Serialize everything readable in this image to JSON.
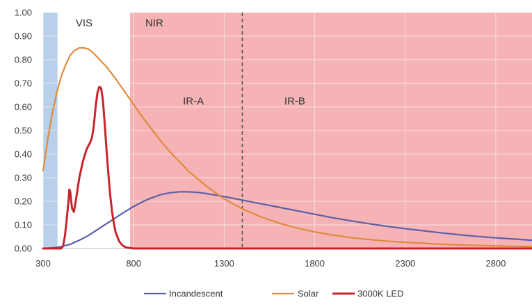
{
  "chart_data": {
    "type": "line",
    "xlim": [
      300,
      3000
    ],
    "ylim": [
      0,
      1.0
    ],
    "x_ticks": [
      "300",
      "800",
      "1300",
      "1800",
      "2300",
      "2800"
    ],
    "y_ticks": [
      "0.00",
      "0.10",
      "0.20",
      "0.30",
      "0.40",
      "0.50",
      "0.60",
      "0.70",
      "0.80",
      "0.90",
      "1.00"
    ],
    "grid": true,
    "legend_position": "bottom",
    "regions": [
      {
        "name": "uv",
        "label": "",
        "x_start": 300,
        "x_end": 380,
        "color": "#b8d0ea"
      },
      {
        "name": "vis",
        "label": "VIS",
        "x_start": 380,
        "x_end": 780,
        "color": "#ffffff"
      },
      {
        "name": "nir",
        "label": "NIR",
        "x_start": 780,
        "x_end": 3000,
        "color": "#f6b3b5"
      }
    ],
    "sub_labels": [
      {
        "name": "ir-a",
        "label": "IR-A",
        "x": 1130,
        "y": 0.61
      },
      {
        "name": "ir-b",
        "label": "IR-B",
        "x": 1690,
        "y": 0.61
      }
    ],
    "boundary_line": {
      "x": 1400,
      "style": "dashed"
    },
    "series": [
      {
        "name": "Incandescent",
        "color": "#5b5fa8",
        "points": [
          [
            300,
            0.0
          ],
          [
            380,
            0.005
          ],
          [
            400,
            0.008
          ],
          [
            450,
            0.018
          ],
          [
            500,
            0.035
          ],
          [
            550,
            0.055
          ],
          [
            600,
            0.08
          ],
          [
            650,
            0.105
          ],
          [
            700,
            0.13
          ],
          [
            750,
            0.155
          ],
          [
            800,
            0.178
          ],
          [
            850,
            0.198
          ],
          [
            900,
            0.215
          ],
          [
            950,
            0.228
          ],
          [
            1000,
            0.236
          ],
          [
            1050,
            0.24
          ],
          [
            1100,
            0.24
          ],
          [
            1150,
            0.238
          ],
          [
            1200,
            0.233
          ],
          [
            1300,
            0.22
          ],
          [
            1400,
            0.205
          ],
          [
            1500,
            0.19
          ],
          [
            1600,
            0.175
          ],
          [
            1700,
            0.16
          ],
          [
            1800,
            0.145
          ],
          [
            1900,
            0.13
          ],
          [
            2000,
            0.117
          ],
          [
            2100,
            0.105
          ],
          [
            2200,
            0.094
          ],
          [
            2300,
            0.084
          ],
          [
            2400,
            0.075
          ],
          [
            2500,
            0.066
          ],
          [
            2600,
            0.058
          ],
          [
            2700,
            0.051
          ],
          [
            2800,
            0.045
          ],
          [
            2900,
            0.04
          ],
          [
            3000,
            0.035
          ]
        ]
      },
      {
        "name": "Solar",
        "color": "#e08a3c",
        "points": [
          [
            300,
            0.33
          ],
          [
            325,
            0.46
          ],
          [
            350,
            0.57
          ],
          [
            375,
            0.66
          ],
          [
            400,
            0.73
          ],
          [
            425,
            0.78
          ],
          [
            450,
            0.82
          ],
          [
            475,
            0.84
          ],
          [
            500,
            0.85
          ],
          [
            525,
            0.85
          ],
          [
            550,
            0.845
          ],
          [
            575,
            0.83
          ],
          [
            600,
            0.81
          ],
          [
            650,
            0.77
          ],
          [
            700,
            0.72
          ],
          [
            750,
            0.665
          ],
          [
            800,
            0.61
          ],
          [
            850,
            0.555
          ],
          [
            900,
            0.505
          ],
          [
            950,
            0.455
          ],
          [
            1000,
            0.41
          ],
          [
            1100,
            0.33
          ],
          [
            1200,
            0.265
          ],
          [
            1300,
            0.21
          ],
          [
            1400,
            0.168
          ],
          [
            1500,
            0.135
          ],
          [
            1600,
            0.108
          ],
          [
            1700,
            0.087
          ],
          [
            1800,
            0.07
          ],
          [
            1900,
            0.057
          ],
          [
            2000,
            0.046
          ],
          [
            2100,
            0.038
          ],
          [
            2200,
            0.031
          ],
          [
            2300,
            0.026
          ],
          [
            2400,
            0.022
          ],
          [
            2500,
            0.018
          ],
          [
            2600,
            0.015
          ],
          [
            2700,
            0.013
          ],
          [
            2800,
            0.011
          ],
          [
            2900,
            0.009
          ],
          [
            3000,
            0.008
          ]
        ]
      },
      {
        "name": "3000K LED",
        "color": "#c8242b",
        "points": [
          [
            300,
            0.0
          ],
          [
            400,
            0.0
          ],
          [
            410,
            0.01
          ],
          [
            420,
            0.05
          ],
          [
            430,
            0.12
          ],
          [
            440,
            0.2
          ],
          [
            445,
            0.25
          ],
          [
            450,
            0.24
          ],
          [
            455,
            0.2
          ],
          [
            460,
            0.17
          ],
          [
            470,
            0.155
          ],
          [
            480,
            0.2
          ],
          [
            500,
            0.3
          ],
          [
            520,
            0.37
          ],
          [
            540,
            0.42
          ],
          [
            560,
            0.45
          ],
          [
            570,
            0.47
          ],
          [
            580,
            0.52
          ],
          [
            590,
            0.6
          ],
          [
            600,
            0.66
          ],
          [
            610,
            0.685
          ],
          [
            620,
            0.68
          ],
          [
            630,
            0.63
          ],
          [
            640,
            0.53
          ],
          [
            650,
            0.42
          ],
          [
            660,
            0.32
          ],
          [
            670,
            0.23
          ],
          [
            680,
            0.16
          ],
          [
            690,
            0.11
          ],
          [
            700,
            0.07
          ],
          [
            720,
            0.03
          ],
          [
            740,
            0.012
          ],
          [
            760,
            0.004
          ],
          [
            800,
            0.0
          ],
          [
            900,
            0.0
          ],
          [
            3000,
            0.0
          ]
        ]
      }
    ]
  }
}
